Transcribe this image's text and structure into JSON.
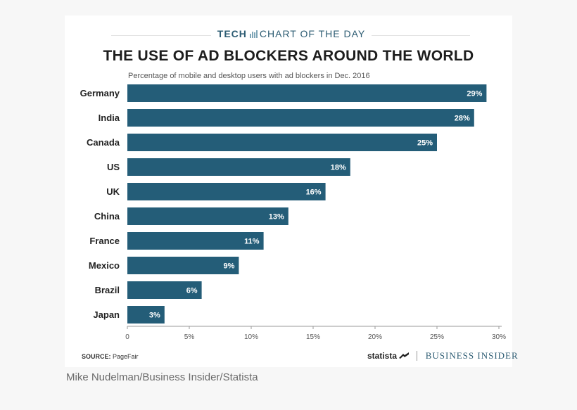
{
  "header": {
    "section": "TECH",
    "label": "CHART OF THE DAY"
  },
  "chart_data": {
    "type": "bar",
    "orientation": "horizontal",
    "title": "THE USE OF AD BLOCKERS AROUND THE WORLD",
    "subtitle": "Percentage of mobile and desktop users with ad blockers in Dec. 2016",
    "categories": [
      "Germany",
      "India",
      "Canada",
      "US",
      "UK",
      "China",
      "France",
      "Mexico",
      "Brazil",
      "Japan"
    ],
    "values": [
      29,
      28,
      25,
      18,
      16,
      13,
      11,
      9,
      6,
      3
    ],
    "data_labels": [
      "29%",
      "28%",
      "25%",
      "18%",
      "16%",
      "13%",
      "11%",
      "9%",
      "6%",
      "3%"
    ],
    "xlim": [
      0,
      30
    ],
    "xticks": [
      0,
      5,
      10,
      15,
      20,
      25,
      30
    ],
    "xtick_labels": [
      "0",
      "5%",
      "10%",
      "15%",
      "20%",
      "25%",
      "30%"
    ],
    "grid": false,
    "bar_color": "#245d78"
  },
  "footer": {
    "source_label": "SOURCE:",
    "source_value": "PageFair",
    "statista": "statista",
    "business_insider": "BUSINESS INSIDER"
  },
  "credit": "Mike Nudelman/Business Insider/Statista"
}
